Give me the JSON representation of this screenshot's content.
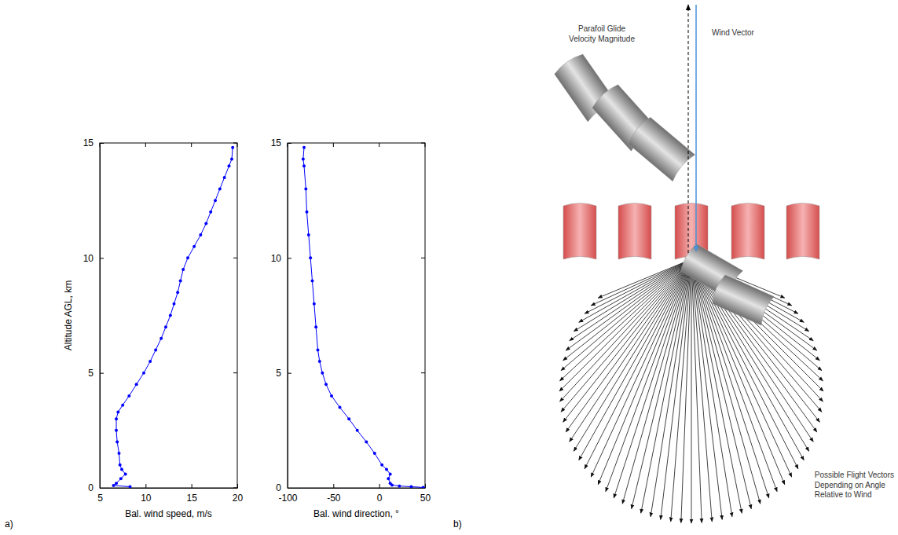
{
  "panel_labels": [
    "a)",
    "b)"
  ],
  "chart_data": [
    {
      "type": "scatter",
      "x_label": "Bal. wind speed, m/s",
      "y_label": "Altitude AGL, km",
      "x": [
        8.3,
        6.5,
        6.8,
        7.3,
        7.8,
        7.4,
        7.2,
        7.1,
        6.9,
        6.8,
        6.8,
        7.0,
        7.5,
        8.2,
        9.0,
        9.8,
        10.5,
        11.1,
        11.7,
        12.2,
        12.7,
        13.1,
        13.5,
        13.8,
        14.1,
        14.6,
        15.3,
        16.0,
        16.6,
        17.1,
        17.6,
        18.1,
        18.6,
        19.1,
        19.4,
        19.5
      ],
      "values": [
        0.05,
        0.1,
        0.2,
        0.4,
        0.6,
        0.8,
        1.0,
        1.5,
        2.0,
        2.5,
        3.0,
        3.3,
        3.6,
        4.0,
        4.5,
        5.0,
        5.5,
        6.0,
        6.5,
        7.0,
        7.5,
        8.0,
        8.5,
        9.0,
        9.5,
        10.0,
        10.5,
        11.0,
        11.5,
        12.0,
        12.5,
        13.0,
        13.5,
        14.0,
        14.3,
        14.8
      ],
      "color": "#0000ff",
      "marker": "dot",
      "line_style": "solid",
      "xlim": [
        5,
        20
      ],
      "xticks": [
        5,
        10,
        15,
        20
      ],
      "ylim": [
        0,
        15
      ],
      "yticks": [
        0,
        5,
        10,
        15
      ]
    },
    {
      "type": "scatter",
      "x_label": "Bal. wind direction, °",
      "x": [
        48,
        35,
        22,
        14,
        12,
        10,
        12,
        8,
        3,
        -5,
        -14,
        -24,
        -33,
        -43,
        -52,
        -58,
        -62,
        -65,
        -67,
        -69,
        -71,
        -73,
        -75,
        -77,
        -79,
        -80,
        -82,
        -83,
        -82
      ],
      "values": [
        0.02,
        0.05,
        0.08,
        0.12,
        0.2,
        0.4,
        0.6,
        0.8,
        1.0,
        1.5,
        2.0,
        2.5,
        3.0,
        3.5,
        4.0,
        4.5,
        5.0,
        5.5,
        6.0,
        7.0,
        8.0,
        9.0,
        10.0,
        11.0,
        12.0,
        13.0,
        14.0,
        14.3,
        14.8
      ],
      "color": "#0000ff",
      "marker": "dot",
      "line_style": "solid",
      "xlim": [
        -100,
        50
      ],
      "xticks": [
        -100,
        -50,
        0,
        50
      ],
      "ylim": [
        0,
        15
      ],
      "yticks": [
        0,
        5,
        10,
        15
      ]
    }
  ],
  "diagram": {
    "glide_label": [
      "Parafoil Glide",
      "Velocity Magnitude"
    ],
    "wind_label": [
      "Wind Vector"
    ],
    "flight_label": [
      "Possible Flight Vectors",
      "Depending on Angle",
      "Relative to Wind"
    ]
  }
}
